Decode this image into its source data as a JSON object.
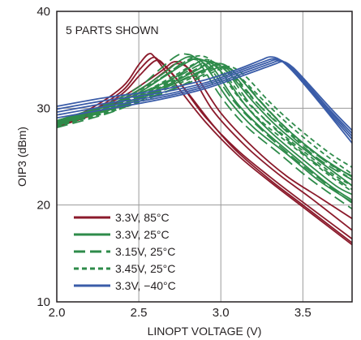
{
  "chart_data": {
    "type": "line",
    "title": "",
    "xlabel": "LINOPT VOLTAGE (V)",
    "ylabel": "OIP3 (dBm)",
    "xlim": [
      2.0,
      3.8
    ],
    "ylim": [
      10,
      40
    ],
    "xticks": [
      "2.0",
      "2.5",
      "3.0",
      "3.5"
    ],
    "yticks": [
      "10",
      "20",
      "30",
      "40"
    ],
    "grid": true,
    "annotation": "5 PARTS SHOWN",
    "legend_position": "bottom-left",
    "colors": {
      "red": "#8b1a2b",
      "green": "#2e8b4a",
      "blue": "#3a5ca8",
      "grid": "#9a9a9a",
      "frame": "#231f20"
    },
    "series": [
      {
        "name": "3.3V, 85°C",
        "color": "#8b1a2b",
        "dash": "",
        "curves": [
          {
            "x": [
              2.0,
              2.2,
              2.4,
              2.5,
              2.56,
              2.6,
              2.7,
              2.9,
              3.1,
              3.3,
              3.5,
              3.8
            ],
            "y": [
              28.4,
              29.9,
              32.2,
              34.5,
              35.6,
              35.2,
              33.0,
              28.7,
              25.2,
              22.4,
              19.8,
              15.9
            ]
          },
          {
            "x": [
              2.0,
              2.2,
              2.4,
              2.5,
              2.58,
              2.63,
              2.75,
              2.9,
              3.1,
              3.3,
              3.5,
              3.8
            ],
            "y": [
              28.3,
              29.6,
              31.8,
              33.9,
              35.2,
              34.8,
              32.6,
              29.2,
              25.7,
              22.9,
              20.3,
              16.5
            ]
          },
          {
            "x": [
              2.0,
              2.2,
              2.4,
              2.5,
              2.6,
              2.66,
              2.78,
              2.95,
              3.1,
              3.3,
              3.5,
              3.8
            ],
            "y": [
              28.2,
              29.4,
              31.5,
              33.3,
              34.9,
              34.4,
              32.0,
              28.3,
              25.5,
              22.6,
              20.0,
              16.1
            ]
          },
          {
            "x": [
              2.0,
              2.2,
              2.4,
              2.55,
              2.65,
              2.72,
              2.8,
              2.95,
              3.15,
              3.35,
              3.55,
              3.8
            ],
            "y": [
              28.5,
              29.7,
              31.2,
              32.8,
              34.0,
              34.8,
              34.1,
              29.8,
              26.1,
              23.2,
              20.7,
              17.4
            ]
          },
          {
            "x": [
              2.0,
              2.2,
              2.4,
              2.55,
              2.66,
              2.74,
              2.84,
              3.0,
              3.2,
              3.4,
              3.6,
              3.8
            ],
            "y": [
              28.1,
              29.2,
              30.9,
              32.4,
              33.8,
              34.6,
              33.5,
              29.5,
              25.9,
              23.0,
              20.8,
              18.6
            ]
          }
        ]
      },
      {
        "name": "3.3V, 25°C",
        "color": "#2e8b4a",
        "dash": "",
        "curves": [
          {
            "x": [
              2.0,
              2.3,
              2.5,
              2.65,
              2.75,
              2.82,
              2.9,
              3.05,
              3.2,
              3.4,
              3.6,
              3.8
            ],
            "y": [
              28.6,
              30.2,
              31.9,
              33.6,
              34.9,
              35.3,
              34.5,
              30.8,
              28.0,
              25.3,
              22.5,
              20.3
            ]
          },
          {
            "x": [
              2.0,
              2.3,
              2.5,
              2.65,
              2.78,
              2.86,
              2.95,
              3.1,
              3.25,
              3.45,
              3.65,
              3.8
            ],
            "y": [
              28.5,
              30.0,
              31.6,
              33.2,
              34.6,
              35.1,
              34.2,
              30.5,
              27.9,
              25.0,
              22.2,
              20.5
            ]
          },
          {
            "x": [
              2.0,
              2.3,
              2.5,
              2.7,
              2.82,
              2.9,
              3.0,
              3.15,
              3.3,
              3.5,
              3.7,
              3.8
            ],
            "y": [
              28.7,
              30.3,
              31.5,
              33.0,
              34.3,
              34.9,
              33.8,
              30.3,
              27.6,
              24.7,
              22.0,
              21.1
            ]
          },
          {
            "x": [
              2.0,
              2.3,
              2.5,
              2.7,
              2.85,
              2.95,
              3.05,
              3.2,
              3.35,
              3.55,
              3.8
            ],
            "y": [
              28.3,
              29.8,
              31.1,
              32.6,
              33.9,
              34.7,
              33.6,
              30.6,
              28.0,
              25.2,
              22.0
            ]
          },
          {
            "x": [
              2.0,
              2.3,
              2.5,
              2.7,
              2.9,
              3.0,
              3.1,
              3.25,
              3.4,
              3.6,
              3.8
            ],
            "y": [
              28.4,
              29.7,
              30.9,
              32.4,
              33.9,
              34.6,
              33.4,
              30.5,
              27.9,
              25.1,
              22.9
            ]
          }
        ]
      },
      {
        "name": "3.15V, 25°C",
        "color": "#2e8b4a",
        "dash": "14 6",
        "curves": [
          {
            "x": [
              2.0,
              2.3,
              2.5,
              2.62,
              2.72,
              2.78,
              2.86,
              3.0,
              3.15,
              3.35,
              3.55,
              3.8
            ],
            "y": [
              28.7,
              30.4,
              32.2,
              33.9,
              35.3,
              35.6,
              34.9,
              31.2,
              28.2,
              25.4,
              22.6,
              19.6
            ]
          },
          {
            "x": [
              2.0,
              2.3,
              2.5,
              2.66,
              2.78,
              2.85,
              2.94,
              3.08,
              3.24,
              3.44,
              3.64,
              3.8
            ],
            "y": [
              28.4,
              30.0,
              31.6,
              33.4,
              34.8,
              35.0,
              34.0,
              30.7,
              27.9,
              24.9,
              22.2,
              20.2
            ]
          },
          {
            "x": [
              2.0,
              2.3,
              2.5,
              2.7,
              2.86,
              2.94,
              3.04,
              3.18,
              3.34,
              3.54,
              3.74,
              3.8
            ],
            "y": [
              28.5,
              30.1,
              31.3,
              32.9,
              34.4,
              34.8,
              33.7,
              30.4,
              27.7,
              24.8,
              22.3,
              21.6
            ]
          },
          {
            "x": [
              2.0,
              2.3,
              2.5,
              2.72,
              2.9,
              2.99,
              3.08,
              3.24,
              3.4,
              3.6,
              3.8
            ],
            "y": [
              28.2,
              29.7,
              31.0,
              32.6,
              34.0,
              34.5,
              33.4,
              30.2,
              27.6,
              24.7,
              22.6
            ]
          },
          {
            "x": [
              2.0,
              2.3,
              2.5,
              2.74,
              2.92,
              3.02,
              3.12,
              3.28,
              3.44,
              3.64,
              3.8
            ],
            "y": [
              28.0,
              29.4,
              30.7,
              32.2,
              33.7,
              34.3,
              33.1,
              30.0,
              27.3,
              24.5,
              23.0
            ]
          }
        ]
      },
      {
        "name": "3.45V, 25°C",
        "color": "#2e8b4a",
        "dash": "6 4",
        "curves": [
          {
            "x": [
              2.0,
              2.3,
              2.5,
              2.68,
              2.8,
              2.88,
              2.96,
              3.1,
              3.25,
              3.45,
              3.65,
              3.8
            ],
            "y": [
              28.6,
              30.2,
              31.8,
              33.6,
              35.0,
              35.4,
              34.6,
              31.3,
              28.6,
              25.9,
              23.2,
              21.4
            ]
          },
          {
            "x": [
              2.0,
              2.3,
              2.5,
              2.7,
              2.84,
              2.92,
              3.0,
              3.14,
              3.3,
              3.5,
              3.7,
              3.8
            ],
            "y": [
              28.3,
              29.9,
              31.4,
              33.2,
              34.6,
              35.0,
              34.1,
              31.0,
              28.4,
              25.6,
              23.0,
              22.0
            ]
          },
          {
            "x": [
              2.0,
              2.3,
              2.5,
              2.72,
              2.88,
              2.96,
              3.05,
              3.2,
              3.36,
              3.56,
              3.8
            ],
            "y": [
              28.4,
              30.0,
              31.2,
              32.9,
              34.3,
              34.7,
              33.8,
              30.9,
              28.3,
              25.5,
              22.6
            ]
          },
          {
            "x": [
              2.0,
              2.3,
              2.5,
              2.74,
              2.92,
              3.01,
              3.1,
              3.26,
              3.42,
              3.62,
              3.8
            ],
            "y": [
              28.1,
              29.6,
              30.8,
              32.5,
              33.9,
              34.5,
              33.5,
              30.8,
              28.2,
              25.4,
              23.2
            ]
          },
          {
            "x": [
              2.0,
              2.3,
              2.5,
              2.76,
              2.95,
              3.05,
              3.15,
              3.3,
              3.46,
              3.66,
              3.8
            ],
            "y": [
              28.2,
              29.5,
              30.6,
              32.3,
              33.7,
              34.3,
              33.3,
              30.6,
              28.1,
              25.4,
              23.9
            ]
          }
        ]
      },
      {
        "name": "3.3V, −40°C",
        "color": "#3a5ca8",
        "dash": "",
        "curves": [
          {
            "x": [
              2.0,
              2.3,
              2.6,
              2.9,
              3.1,
              3.25,
              3.3,
              3.36,
              3.45,
              3.6,
              3.8
            ],
            "y": [
              30.2,
              31.1,
              31.8,
              32.9,
              34.0,
              35.0,
              35.3,
              35.0,
              33.6,
              30.6,
              26.4
            ]
          },
          {
            "x": [
              2.0,
              2.3,
              2.6,
              2.9,
              3.1,
              3.26,
              3.32,
              3.38,
              3.47,
              3.62,
              3.8
            ],
            "y": [
              29.9,
              30.8,
              31.5,
              32.6,
              33.8,
              34.8,
              35.1,
              34.8,
              33.3,
              30.3,
              26.8
            ]
          },
          {
            "x": [
              2.0,
              2.3,
              2.6,
              2.9,
              3.1,
              3.28,
              3.34,
              3.4,
              3.49,
              3.64,
              3.8
            ],
            "y": [
              29.6,
              30.5,
              31.2,
              32.4,
              33.6,
              34.7,
              35.0,
              34.6,
              33.0,
              30.1,
              27.1
            ]
          },
          {
            "x": [
              2.0,
              2.3,
              2.6,
              2.9,
              3.12,
              3.3,
              3.36,
              3.42,
              3.51,
              3.66,
              3.8
            ],
            "y": [
              29.3,
              30.2,
              31.0,
              32.2,
              33.5,
              34.6,
              34.9,
              34.4,
              32.8,
              29.9,
              27.4
            ]
          },
          {
            "x": [
              2.0,
              2.3,
              2.6,
              2.9,
              3.14,
              3.32,
              3.38,
              3.44,
              3.53,
              3.68,
              3.8
            ],
            "y": [
              29.0,
              29.9,
              30.8,
              32.0,
              33.4,
              34.5,
              34.8,
              34.2,
              32.6,
              29.8,
              27.7
            ]
          }
        ]
      }
    ]
  }
}
